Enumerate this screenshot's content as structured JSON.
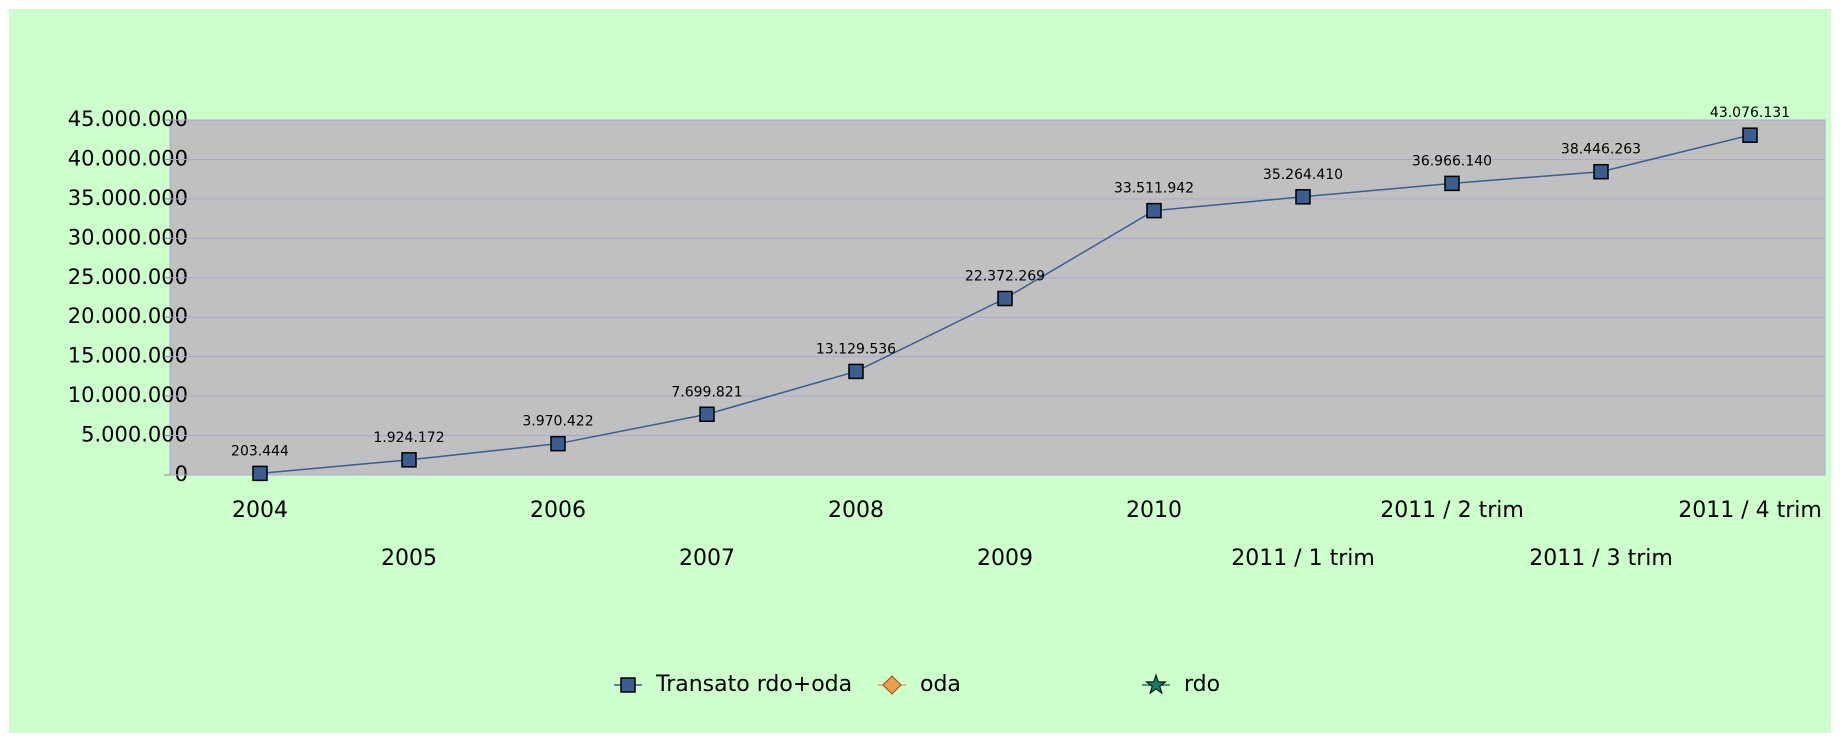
{
  "chart_data": {
    "type": "line",
    "categories": [
      "2004",
      "2005",
      "2006",
      "2007",
      "2008",
      "2009",
      "2010",
      "2011 / 1 trim",
      "2011 / 2 trim",
      "2011 / 3 trim",
      "2011 / 4 trim"
    ],
    "series": [
      {
        "name": "Transato rdo+oda",
        "color": "#3b5d8f",
        "marker": "square",
        "values": [
          203444,
          1924172,
          3970422,
          7699821,
          13129536,
          22372269,
          33511942,
          35264410,
          36966140,
          38446263,
          43076131
        ],
        "value_labels": [
          "203.444",
          "1.924.172",
          "3.970.422",
          "7.699.821",
          "13.129.536",
          "22.372.269",
          "33.511.942",
          "35.264.410",
          "36.966.140",
          "38.446.263",
          "43.076.131"
        ]
      },
      {
        "name": "oda",
        "color": "#e8a050",
        "marker": "diamond",
        "values": [
          null,
          null,
          null,
          null,
          null,
          null,
          null,
          null,
          null,
          null,
          null
        ]
      },
      {
        "name": "rdo",
        "color": "#1a7a6a",
        "marker": "star",
        "values": [
          null,
          null,
          null,
          null,
          null,
          null,
          null,
          null,
          null,
          null,
          null
        ]
      }
    ],
    "ylim": [
      0,
      45000000
    ],
    "yticks": [
      0,
      {
        "value": 5000000,
        "label": "5.000.000"
      },
      {
        "value": 10000000,
        "label": "10.000.000"
      },
      {
        "value": 15000000,
        "label": "15.000.000"
      },
      {
        "value": 20000000,
        "label": "20.000.000"
      },
      {
        "value": 25000000,
        "label": "25.000.000"
      },
      {
        "value": 30000000,
        "label": "30.000.000"
      },
      {
        "value": 35000000,
        "label": "35.000.000"
      },
      {
        "value": 40000000,
        "label": "40.000.000"
      },
      {
        "value": 45000000,
        "label": "45.000.000"
      }
    ],
    "grid": true,
    "legend": "bottom"
  }
}
